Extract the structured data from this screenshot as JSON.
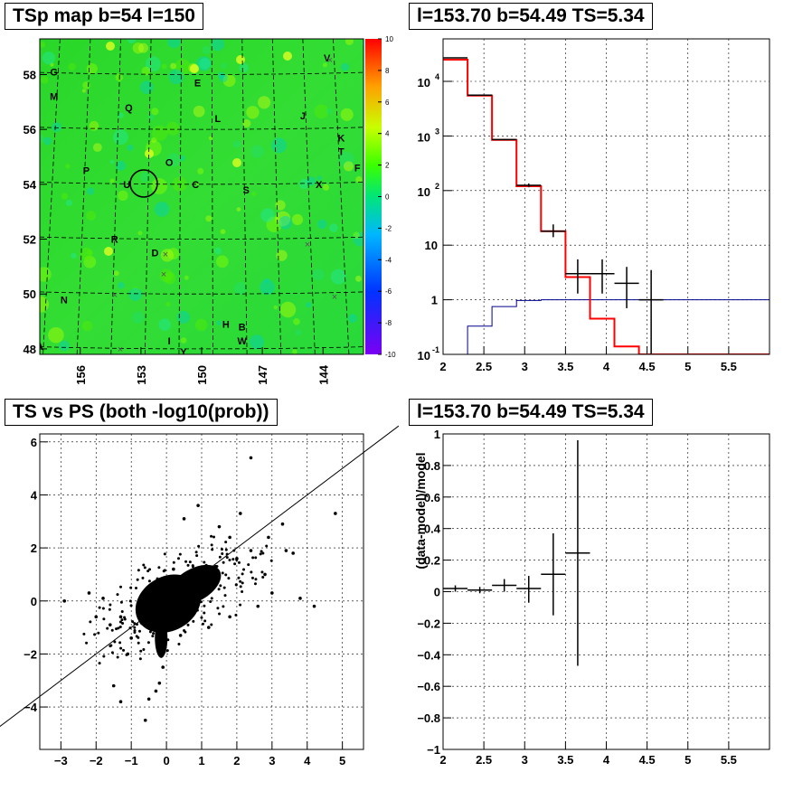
{
  "panels": {
    "map": {
      "title": "TSp map b=54 l=150",
      "yticks": [
        "48",
        "50",
        "52",
        "54",
        "56",
        "58"
      ],
      "xticks": [
        "156",
        "153",
        "150",
        "147",
        "144"
      ],
      "colorbar_ticks": [
        "-10",
        "-8",
        "-6",
        "-4",
        "-2",
        "0",
        "2",
        "4",
        "6",
        "8",
        "10"
      ],
      "letters": [
        "A",
        "B",
        "C",
        "D",
        "E",
        "F",
        "G",
        "H",
        "I",
        "J",
        "K",
        "L",
        "M",
        "N",
        "O",
        "P",
        "Q",
        "R",
        "S",
        "T",
        "U",
        "V",
        "W",
        "X",
        "Y"
      ]
    },
    "spectrum": {
      "title": "l=153.70 b=54.49 TS=5.34",
      "xticks": [
        "2",
        "2.5",
        "3",
        "3.5",
        "4",
        "4.5",
        "5",
        "5.5"
      ],
      "yticks": [
        "10^-1",
        "1",
        "10",
        "10^2",
        "10^3",
        "10^4"
      ]
    },
    "scatter": {
      "title": "TS vs PS (both -log10(prob))",
      "xticks": [
        "-3",
        "-2",
        "-1",
        "0",
        "1",
        "2",
        "3",
        "4",
        "5"
      ],
      "yticks": [
        "-4",
        "-2",
        "0",
        "2",
        "4",
        "6"
      ]
    },
    "residual": {
      "title": "l=153.70 b=54.49 TS=5.34",
      "ylabel": "(data-model)/model",
      "xticks": [
        "2",
        "2.5",
        "3",
        "3.5",
        "4",
        "4.5",
        "5",
        "5.5"
      ],
      "yticks": [
        "-1",
        "-0.8",
        "-0.6",
        "-0.4",
        "-0.2",
        "0",
        "0.2",
        "0.4",
        "0.6",
        "0.8",
        "1"
      ]
    }
  },
  "chart_data": [
    {
      "type": "heatmap",
      "title": "TSp map b=54 l=150",
      "xlim": [
        158,
        142
      ],
      "ylim": [
        47.8,
        59.3
      ],
      "zlim": [
        -10,
        10
      ],
      "colorbar": "rainbow",
      "grid": true,
      "circle": {
        "l": 153.7,
        "b": 54.0
      },
      "markers": [
        {
          "label": "G",
          "l": 157.3,
          "b": 58.1
        },
        {
          "label": "M",
          "l": 157.3,
          "b": 57.2
        },
        {
          "label": "E",
          "l": 150.2,
          "b": 57.7
        },
        {
          "label": "V",
          "l": 143.8,
          "b": 58.6
        },
        {
          "label": "Q",
          "l": 153.6,
          "b": 56.8
        },
        {
          "label": "L",
          "l": 149.2,
          "b": 56.4
        },
        {
          "label": "J",
          "l": 145.0,
          "b": 56.5
        },
        {
          "label": "K",
          "l": 143.1,
          "b": 55.7
        },
        {
          "label": "T",
          "l": 143.1,
          "b": 55.2
        },
        {
          "label": "F",
          "l": 142.3,
          "b": 54.6
        },
        {
          "label": "O",
          "l": 151.6,
          "b": 54.8
        },
        {
          "label": "P",
          "l": 155.7,
          "b": 54.5
        },
        {
          "label": "U",
          "l": 153.7,
          "b": 54.0
        },
        {
          "label": "C",
          "l": 150.3,
          "b": 54.0
        },
        {
          "label": "S",
          "l": 147.8,
          "b": 53.8
        },
        {
          "label": "X",
          "l": 144.2,
          "b": 54.0
        },
        {
          "label": "R",
          "l": 154.3,
          "b": 52.0
        },
        {
          "label": "D",
          "l": 152.3,
          "b": 51.5
        },
        {
          "label": "N",
          "l": 156.8,
          "b": 49.8
        },
        {
          "label": "H",
          "l": 148.8,
          "b": 48.9
        },
        {
          "label": "B",
          "l": 148.0,
          "b": 48.8
        },
        {
          "label": "W",
          "l": 148.0,
          "b": 48.3
        },
        {
          "label": "I",
          "l": 151.6,
          "b": 48.3
        },
        {
          "label": "Y",
          "l": 150.9,
          "b": 47.9
        },
        {
          "label": "A",
          "l": 158.0,
          "b": 48.1
        }
      ]
    },
    {
      "type": "line",
      "title": "l=153.70 b=54.49 TS=5.34",
      "xlim": [
        2,
        6
      ],
      "ylim": [
        0.1,
        60000
      ],
      "yscale": "log",
      "grid": true,
      "bin_edges": [
        2.0,
        2.3,
        2.6,
        2.9,
        3.2,
        3.5,
        3.8,
        4.1,
        4.4,
        4.7,
        5.0,
        5.3,
        5.6,
        6.0
      ],
      "series": [
        {
          "values": [
            25000,
            5500,
            850,
            120,
            18,
            2.6,
            0.45,
            0.14,
            0.1,
            0.1,
            0.1,
            0.1,
            0.1
          ],
          "color": "#ff0000"
        },
        {
          "values": [
            0.1,
            0.33,
            0.75,
            0.97,
            1.0,
            1.0,
            1.0,
            1.0,
            1.0,
            1.0,
            1.0,
            1.0,
            1.0
          ],
          "color": "#00008b"
        },
        {
          "values": [
            27000,
            5600,
            860,
            125,
            18,
            3.0,
            3.0,
            2.0,
            1.0
          ],
          "x": [
            2.15,
            2.45,
            2.75,
            3.05,
            3.35,
            3.65,
            3.95,
            4.25,
            4.55
          ],
          "lo": [
            26500,
            5450,
            835,
            115,
            14,
            1.3,
            1.3,
            0.7,
            0.1
          ],
          "hi": [
            27500,
            5750,
            885,
            135,
            24,
            5.5,
            5.5,
            4.0,
            3.5
          ],
          "color": "#000000"
        }
      ]
    },
    {
      "type": "scatter",
      "title": "TS vs PS (both -log10(prob))",
      "xlim": [
        -3.6,
        5.6
      ],
      "ylim": [
        -5.6,
        6.3
      ],
      "grid": true,
      "reference_line": {
        "slope": 1,
        "intercept": 0
      },
      "series": [
        {
          "points": [
            [
              -0.3,
              0.0
            ],
            [
              0.1,
              -0.4
            ],
            [
              0.4,
              0.3
            ],
            [
              -0.5,
              -0.8
            ],
            [
              0.8,
              0.6
            ],
            [
              -0.1,
              -2.5
            ],
            [
              -0.2,
              -3.1
            ],
            [
              0.2,
              1.2
            ],
            [
              1.0,
              0.9
            ],
            [
              -0.8,
              -0.5
            ],
            [
              1.4,
              1.3
            ],
            [
              2.0,
              1.6
            ],
            [
              2.4,
              1.9
            ],
            [
              2.1,
              3.3
            ],
            [
              2.4,
              5.4
            ],
            [
              1.5,
              2.8
            ],
            [
              2.9,
              2.4
            ],
            [
              3.4,
              1.9
            ],
            [
              3.3,
              2.9
            ],
            [
              3.6,
              1.8
            ],
            [
              4.8,
              3.3
            ],
            [
              4.2,
              -0.2
            ],
            [
              3.8,
              0.1
            ],
            [
              -2.9,
              0.0
            ],
            [
              -2.2,
              0.3
            ],
            [
              -1.3,
              -0.6
            ],
            [
              -1.0,
              -1.4
            ],
            [
              -1.5,
              -3.2
            ],
            [
              -1.3,
              -3.8
            ],
            [
              -0.6,
              -4.5
            ],
            [
              -0.5,
              -3.7
            ],
            [
              -0.3,
              -3.4
            ],
            [
              -1.1,
              -2.0
            ],
            [
              -1.6,
              -0.9
            ],
            [
              -2.0,
              -0.6
            ],
            [
              -1.8,
              0.1
            ],
            [
              0.5,
              3.1
            ],
            [
              0.9,
              3.6
            ],
            [
              1.8,
              2.4
            ],
            [
              2.8,
              1.0
            ],
            [
              3.0,
              0.3
            ],
            [
              2.6,
              -0.2
            ],
            [
              1.8,
              -0.6
            ],
            [
              1.2,
              -1.0
            ],
            [
              0.4,
              -1.3
            ]
          ]
        }
      ]
    },
    {
      "type": "line",
      "title": "l=153.70 b=54.49 TS=5.34",
      "ylabel": "(data-model)/model",
      "xlim": [
        2,
        6
      ],
      "ylim": [
        -1,
        1
      ],
      "grid": true,
      "series": [
        {
          "x": [
            2.15,
            2.45,
            2.75,
            3.05,
            3.35,
            3.65
          ],
          "values": [
            0.02,
            0.01,
            0.04,
            0.02,
            0.11,
            0.245
          ],
          "lo": [
            0.0,
            -0.01,
            0.0,
            -0.07,
            -0.15,
            -0.47
          ],
          "hi": [
            0.04,
            0.03,
            0.08,
            0.1,
            0.37,
            0.96
          ],
          "color": "#000000"
        }
      ]
    }
  ]
}
